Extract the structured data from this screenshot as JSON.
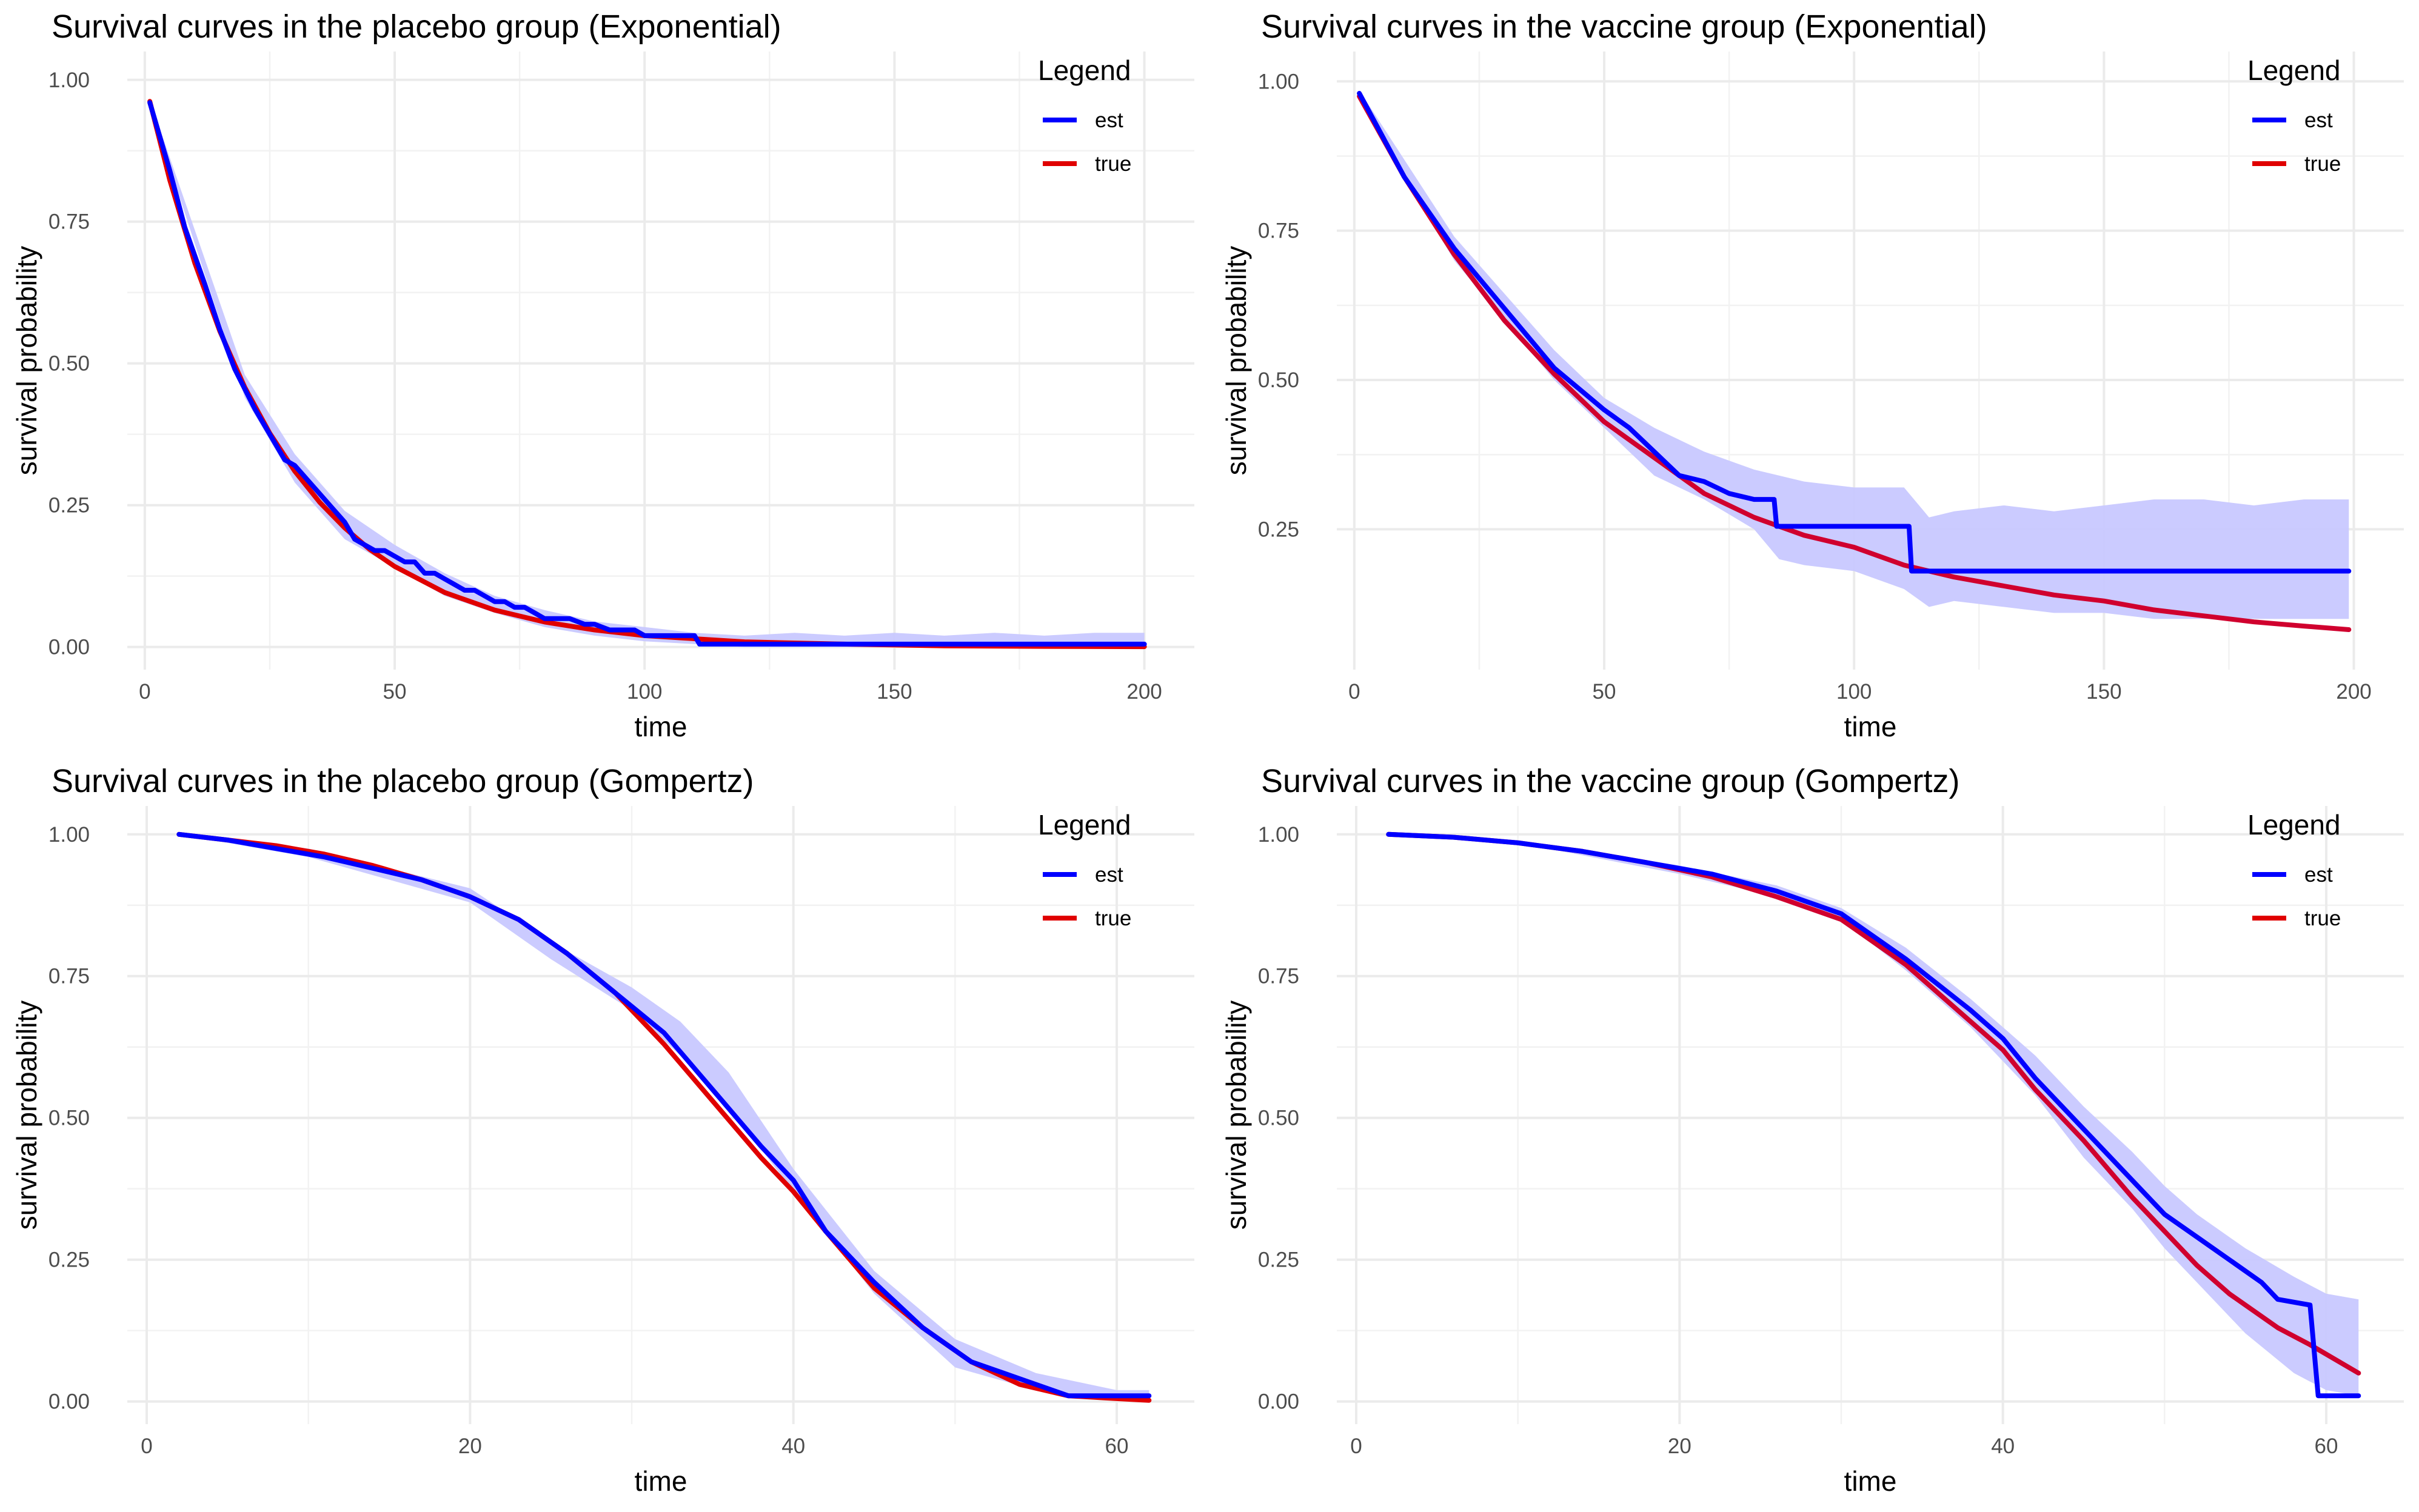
{
  "legend": {
    "title": "Legend",
    "items": [
      {
        "label": "est",
        "color": "#0000ff"
      },
      {
        "label": "true",
        "color": "#e00000"
      }
    ]
  },
  "chart_data": [
    {
      "id": "placebo-exp",
      "type": "line",
      "title": "Survival curves in the placebo group (Exponential)",
      "xlabel": "time",
      "ylabel": "survival probability",
      "xlim": [
        -3.5,
        210
      ],
      "ylim": [
        -0.04,
        1.05
      ],
      "xticks": [
        0,
        50,
        100,
        150,
        200
      ],
      "xtick_labels": [
        "0",
        "50",
        "100",
        "150",
        "200"
      ],
      "yticks": [
        0,
        0.25,
        0.5,
        0.75,
        1
      ],
      "ytick_labels": [
        "0.00",
        "0.25",
        "0.50",
        "0.75",
        "1.00"
      ],
      "grid": true,
      "legend_position": "top-right",
      "series": [
        {
          "name": "est",
          "color": "#0000ff",
          "x": [
            1,
            5,
            8,
            12,
            15,
            18,
            22,
            26,
            28,
            30,
            32,
            35,
            38,
            40,
            42,
            44,
            46,
            48,
            50,
            52,
            54,
            56,
            58,
            60,
            62,
            64,
            66,
            68,
            70,
            72,
            74,
            76,
            78,
            80,
            82,
            85,
            88,
            90,
            93,
            95,
            98,
            100,
            103,
            106,
            110,
            111,
            120,
            150,
            200
          ],
          "y": [
            0.96,
            0.84,
            0.74,
            0.64,
            0.56,
            0.49,
            0.42,
            0.36,
            0.33,
            0.32,
            0.3,
            0.27,
            0.24,
            0.22,
            0.19,
            0.18,
            0.17,
            0.17,
            0.16,
            0.15,
            0.15,
            0.13,
            0.13,
            0.12,
            0.11,
            0.1,
            0.1,
            0.09,
            0.08,
            0.08,
            0.07,
            0.07,
            0.06,
            0.05,
            0.05,
            0.05,
            0.04,
            0.04,
            0.03,
            0.03,
            0.03,
            0.02,
            0.02,
            0.02,
            0.02,
            0.005,
            0.005,
            0.005,
            0.005
          ]
        },
        {
          "name": "true",
          "color": "#e00000",
          "x": [
            1,
            5,
            10,
            15,
            20,
            25,
            30,
            35,
            40,
            45,
            50,
            60,
            70,
            80,
            90,
            100,
            120,
            140,
            160,
            180,
            200
          ],
          "y": [
            0.962,
            0.823,
            0.677,
            0.557,
            0.458,
            0.377,
            0.31,
            0.255,
            0.21,
            0.172,
            0.142,
            0.096,
            0.065,
            0.044,
            0.03,
            0.02,
            0.009,
            0.005,
            0.002,
            0.001,
            0.0005
          ]
        }
      ],
      "band": {
        "x": [
          1,
          20,
          30,
          40,
          50,
          60,
          70,
          80,
          90,
          100,
          110,
          120,
          130,
          140,
          150,
          160,
          170,
          180,
          190,
          200
        ],
        "lower": [
          0.955,
          0.44,
          0.29,
          0.19,
          0.14,
          0.09,
          0.06,
          0.035,
          0.02,
          0.01,
          0.005,
          0.0,
          0.0,
          0.0,
          0.0,
          0.0,
          0.0,
          0.0,
          0.0,
          0.0
        ],
        "upper": [
          0.965,
          0.48,
          0.34,
          0.24,
          0.18,
          0.13,
          0.09,
          0.065,
          0.045,
          0.035,
          0.025,
          0.02,
          0.025,
          0.02,
          0.025,
          0.02,
          0.025,
          0.02,
          0.025,
          0.025
        ]
      }
    },
    {
      "id": "vaccine-exp",
      "type": "line",
      "title": "Survival curves in the vaccine group (Exponential)",
      "xlabel": "time",
      "ylabel": "survival probability",
      "xlim": [
        -3.5,
        210
      ],
      "ylim": [
        0.015,
        1.05
      ],
      "xticks": [
        0,
        50,
        100,
        150,
        200
      ],
      "xtick_labels": [
        "0",
        "50",
        "100",
        "150",
        "200"
      ],
      "yticks": [
        0.25,
        0.5,
        0.75,
        1
      ],
      "ytick_labels": [
        "0.25",
        "0.50",
        "0.75",
        "1.00"
      ],
      "grid": true,
      "legend_position": "top-right",
      "series": [
        {
          "name": "est",
          "color": "#0000ff",
          "x": [
            1,
            10,
            20,
            30,
            40,
            50,
            55,
            60,
            65,
            70,
            75,
            80,
            84,
            84.5,
            100,
            111,
            111.5,
            150,
            199
          ],
          "y": [
            0.98,
            0.84,
            0.72,
            0.62,
            0.52,
            0.45,
            0.42,
            0.38,
            0.34,
            0.33,
            0.31,
            0.3,
            0.3,
            0.255,
            0.255,
            0.255,
            0.18,
            0.18,
            0.18
          ]
        },
        {
          "name": "true",
          "color": "#d0002e",
          "x": [
            1,
            10,
            20,
            30,
            40,
            50,
            60,
            70,
            80,
            90,
            100,
            110,
            120,
            130,
            140,
            150,
            160,
            170,
            180,
            190,
            199
          ],
          "y": [
            0.975,
            0.84,
            0.71,
            0.6,
            0.51,
            0.43,
            0.37,
            0.31,
            0.27,
            0.24,
            0.22,
            0.19,
            0.17,
            0.155,
            0.14,
            0.13,
            0.115,
            0.105,
            0.095,
            0.088,
            0.082
          ]
        }
      ],
      "band": {
        "x": [
          1,
          20,
          40,
          50,
          60,
          70,
          80,
          85,
          90,
          100,
          110,
          115,
          120,
          130,
          140,
          150,
          160,
          170,
          180,
          190,
          199
        ],
        "lower": [
          0.97,
          0.7,
          0.5,
          0.42,
          0.34,
          0.3,
          0.25,
          0.2,
          0.19,
          0.18,
          0.15,
          0.12,
          0.13,
          0.12,
          0.11,
          0.11,
          0.1,
          0.1,
          0.1,
          0.1,
          0.1
        ],
        "upper": [
          0.985,
          0.74,
          0.55,
          0.47,
          0.42,
          0.38,
          0.35,
          0.34,
          0.33,
          0.32,
          0.32,
          0.27,
          0.28,
          0.29,
          0.28,
          0.29,
          0.3,
          0.3,
          0.29,
          0.3,
          0.3
        ]
      }
    },
    {
      "id": "placebo-gomp",
      "type": "line",
      "title": "Survival curves in the placebo group (Gompertz)",
      "xlabel": "time",
      "ylabel": "survival probability",
      "xlim": [
        -1.2,
        64.8
      ],
      "ylim": [
        -0.04,
        1.05
      ],
      "xticks": [
        0,
        20,
        40,
        60
      ],
      "xtick_labels": [
        "0",
        "20",
        "40",
        "60"
      ],
      "yticks": [
        0,
        0.25,
        0.5,
        0.75,
        1
      ],
      "ytick_labels": [
        "0.00",
        "0.25",
        "0.50",
        "0.75",
        "1.00"
      ],
      "grid": true,
      "legend_position": "top-right",
      "series": [
        {
          "name": "est",
          "color": "#0000ff",
          "x": [
            2,
            5,
            8,
            11,
            14,
            17,
            20,
            23,
            26,
            29,
            32,
            35,
            38,
            40,
            42,
            45,
            48,
            51,
            54,
            57,
            60,
            62
          ],
          "y": [
            1.0,
            0.99,
            0.975,
            0.96,
            0.94,
            0.92,
            0.89,
            0.85,
            0.79,
            0.72,
            0.65,
            0.55,
            0.45,
            0.39,
            0.3,
            0.21,
            0.13,
            0.07,
            0.04,
            0.01,
            0.01,
            0.01
          ]
        },
        {
          "name": "true",
          "color": "#e00000",
          "x": [
            2,
            5,
            8,
            11,
            14,
            17,
            20,
            23,
            26,
            29,
            32,
            35,
            38,
            40,
            42,
            45,
            48,
            51,
            54,
            57,
            60,
            62
          ],
          "y": [
            1.0,
            0.99,
            0.98,
            0.965,
            0.945,
            0.92,
            0.89,
            0.85,
            0.79,
            0.72,
            0.63,
            0.53,
            0.43,
            0.37,
            0.3,
            0.2,
            0.13,
            0.07,
            0.03,
            0.01,
            0.005,
            0.002
          ]
        }
      ],
      "band": {
        "x": [
          2,
          10,
          20,
          25,
          30,
          33,
          36,
          40,
          45,
          50,
          55,
          60,
          62
        ],
        "lower": [
          1.0,
          0.96,
          0.88,
          0.78,
          0.69,
          0.61,
          0.52,
          0.37,
          0.19,
          0.06,
          0.02,
          0.005,
          0.0
        ],
        "upper": [
          1.0,
          0.975,
          0.905,
          0.81,
          0.73,
          0.67,
          0.58,
          0.41,
          0.23,
          0.11,
          0.05,
          0.02,
          0.02
        ]
      }
    },
    {
      "id": "vaccine-gomp",
      "type": "line",
      "title": "Survival curves in the vaccine group (Gompertz)",
      "xlabel": "time",
      "ylabel": "survival probability",
      "xlim": [
        -1.2,
        64.8
      ],
      "ylim": [
        -0.04,
        1.05
      ],
      "xticks": [
        0,
        20,
        40,
        60
      ],
      "xtick_labels": [
        "0",
        "20",
        "40",
        "60"
      ],
      "yticks": [
        0,
        0.25,
        0.5,
        0.75,
        1
      ],
      "ytick_labels": [
        "0.00",
        "0.25",
        "0.50",
        "0.75",
        "1.00"
      ],
      "grid": true,
      "legend_position": "top-right",
      "series": [
        {
          "name": "est",
          "color": "#0000ff",
          "x": [
            2,
            6,
            10,
            14,
            18,
            22,
            26,
            30,
            34,
            38,
            40,
            42,
            45,
            48,
            50,
            52,
            54,
            56,
            57,
            59,
            59.5,
            62
          ],
          "y": [
            1.0,
            0.995,
            0.985,
            0.97,
            0.95,
            0.93,
            0.9,
            0.86,
            0.78,
            0.69,
            0.64,
            0.57,
            0.48,
            0.39,
            0.33,
            0.29,
            0.25,
            0.21,
            0.18,
            0.17,
            0.01,
            0.01
          ]
        },
        {
          "name": "true",
          "color": "#d0002e",
          "x": [
            2,
            6,
            10,
            14,
            18,
            22,
            26,
            30,
            34,
            38,
            40,
            42,
            45,
            48,
            50,
            52,
            54,
            57,
            59,
            62
          ],
          "y": [
            1.0,
            0.995,
            0.985,
            0.97,
            0.95,
            0.925,
            0.89,
            0.85,
            0.77,
            0.67,
            0.62,
            0.55,
            0.46,
            0.36,
            0.3,
            0.24,
            0.19,
            0.13,
            0.1,
            0.05
          ]
        }
      ],
      "band": {
        "x": [
          2,
          10,
          20,
          26,
          30,
          34,
          38,
          42,
          45,
          48,
          50,
          52,
          55,
          58,
          60,
          62
        ],
        "lower": [
          1.0,
          0.985,
          0.93,
          0.89,
          0.85,
          0.76,
          0.66,
          0.54,
          0.43,
          0.34,
          0.27,
          0.21,
          0.12,
          0.05,
          0.02,
          0.01
        ],
        "upper": [
          1.0,
          0.99,
          0.945,
          0.91,
          0.87,
          0.8,
          0.71,
          0.61,
          0.52,
          0.44,
          0.38,
          0.33,
          0.27,
          0.22,
          0.19,
          0.18
        ]
      }
    }
  ]
}
